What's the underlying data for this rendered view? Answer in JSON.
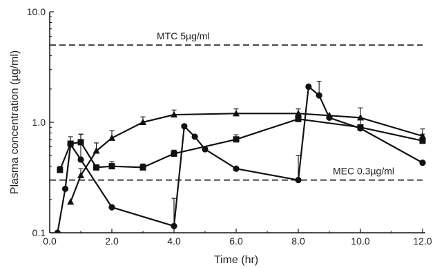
{
  "chart_data": {
    "type": "line",
    "title": "",
    "xlabel": "Time (hr)",
    "ylabel": "Plasma concentration (µg/ml)",
    "xlim": [
      0,
      12
    ],
    "ylim": [
      0.1,
      10
    ],
    "y_scale": "log",
    "grid": false,
    "x_ticks": [
      {
        "value": 0,
        "label": "0.0"
      },
      {
        "value": 2,
        "label": "2.0"
      },
      {
        "value": 4,
        "label": "4.0"
      },
      {
        "value": 6,
        "label": "6.0"
      },
      {
        "value": 8,
        "label": "8.0"
      },
      {
        "value": 10,
        "label": "10.0"
      },
      {
        "value": 12,
        "label": "12.0"
      }
    ],
    "y_ticks": [
      {
        "value": 0.1,
        "label": "0.1"
      },
      {
        "value": 1,
        "label": "1.0"
      },
      {
        "value": 10,
        "label": "10.0"
      }
    ],
    "reference_lines": [
      {
        "value": 5,
        "label": "MTC 5µg/ml",
        "style": "dashed"
      },
      {
        "value": 0.3,
        "label": "MEC 0.3µg/ml",
        "style": "dashed"
      }
    ],
    "series": [
      {
        "marker": "circle",
        "x": [
          0.25,
          0.5,
          0.67,
          1.0,
          2.0,
          4.0,
          4.33,
          4.67,
          5.0,
          6.0,
          8.0,
          8.33,
          8.67,
          9.0,
          10.0,
          12.0
        ],
        "y": [
          0.1,
          0.25,
          0.63,
          0.46,
          0.17,
          0.115,
          0.92,
          0.74,
          0.57,
          0.38,
          0.3,
          2.1,
          1.75,
          1.1,
          0.88,
          0.43
        ],
        "err_up": [
          0,
          0,
          0,
          0.32,
          0,
          0.09,
          0,
          0,
          0,
          0,
          0.2,
          0,
          0.6,
          0,
          0,
          0
        ]
      },
      {
        "marker": "square",
        "x": [
          0.33,
          0.67,
          1.0,
          1.5,
          2.0,
          3.0,
          4.0,
          6.0,
          8.0,
          10.0,
          12.0
        ],
        "y": [
          0.37,
          0.64,
          0.66,
          0.39,
          0.4,
          0.39,
          0.52,
          0.7,
          1.07,
          0.9,
          0.68
        ],
        "err_up": [
          0.03,
          0.1,
          0.12,
          0,
          0.04,
          0.03,
          0.04,
          0.07,
          0.08,
          0.15,
          0.1
        ]
      },
      {
        "marker": "triangle",
        "x": [
          0.67,
          1.0,
          1.5,
          2.0,
          3.0,
          4.0,
          6.0,
          8.0,
          9.0,
          10.0,
          12.0
        ],
        "y": [
          0.19,
          0.33,
          0.55,
          0.72,
          1.0,
          1.17,
          1.2,
          1.2,
          1.15,
          1.1,
          0.75
        ],
        "err_up": [
          0,
          0.05,
          0.1,
          0.12,
          0.12,
          0.12,
          0.12,
          0.12,
          0,
          0.25,
          0.12
        ]
      }
    ]
  }
}
